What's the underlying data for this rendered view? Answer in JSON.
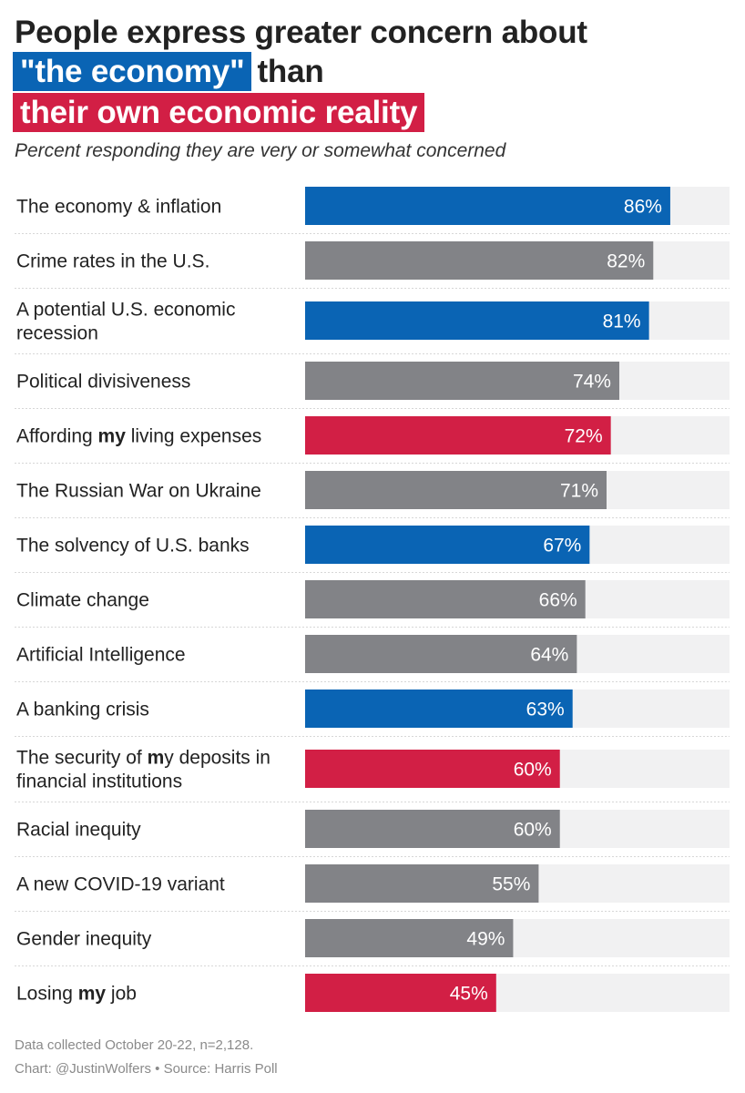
{
  "title": {
    "line1": "People express greater concern about",
    "line2_highlight": "\"the economy\"",
    "line2_rest": "than",
    "line3_highlight": "their own economic reality"
  },
  "subtitle": "Percent responding they are very or somewhat concerned",
  "colors": {
    "blue": "#0a64b4",
    "gray": "#828387",
    "red": "#d21f45",
    "track": "#f1f1f2",
    "divider": "#d7d7d7"
  },
  "chart_data": {
    "type": "bar",
    "orientation": "horizontal",
    "xlim": [
      0,
      100
    ],
    "value_suffix": "%",
    "categories": [
      "The economy & inflation",
      "Crime rates in the U.S.",
      "A potential U.S. economic recession",
      "Political divisiveness",
      "Affording my living expenses",
      "The Russian War on Ukraine",
      "The solvency of U.S. banks",
      "Climate change",
      "Artificial Intelligence",
      "A banking crisis",
      "The security of my deposits in financial institutions",
      "Racial inequity",
      "A new COVID-19 variant",
      "Gender inequity",
      "Losing my job"
    ],
    "rows": [
      {
        "label": "The economy & inflation",
        "lines": [
          [
            {
              "t": "The economy & inflation"
            }
          ]
        ],
        "value": 86,
        "group": "blue"
      },
      {
        "label": "Crime rates in the U.S.",
        "lines": [
          [
            {
              "t": "Crime rates in the U.S."
            }
          ]
        ],
        "value": 82,
        "group": "gray"
      },
      {
        "label": "A potential U.S. economic recession",
        "lines": [
          [
            {
              "t": "A potential U.S. economic"
            }
          ],
          [
            {
              "t": "recession"
            }
          ]
        ],
        "value": 81,
        "group": "blue"
      },
      {
        "label": "Political divisiveness",
        "lines": [
          [
            {
              "t": "Political divisiveness"
            }
          ]
        ],
        "value": 74,
        "group": "gray"
      },
      {
        "label": "Affording my living expenses",
        "lines": [
          [
            {
              "t": "Affording "
            },
            {
              "t": "my",
              "b": true
            },
            {
              "t": " living expenses"
            }
          ]
        ],
        "value": 72,
        "group": "red"
      },
      {
        "label": "The Russian War on Ukraine",
        "lines": [
          [
            {
              "t": "The Russian War on Ukraine"
            }
          ]
        ],
        "value": 71,
        "group": "gray"
      },
      {
        "label": "The solvency of U.S. banks",
        "lines": [
          [
            {
              "t": "The solvency of U.S. banks"
            }
          ]
        ],
        "value": 67,
        "group": "blue"
      },
      {
        "label": "Climate change",
        "lines": [
          [
            {
              "t": "Climate change"
            }
          ]
        ],
        "value": 66,
        "group": "gray"
      },
      {
        "label": "Artificial Intelligence",
        "lines": [
          [
            {
              "t": "Artificial Intelligence"
            }
          ]
        ],
        "value": 64,
        "group": "gray"
      },
      {
        "label": "A banking crisis",
        "lines": [
          [
            {
              "t": "A banking crisis"
            }
          ]
        ],
        "value": 63,
        "group": "blue"
      },
      {
        "label": "The security of my deposits in financial institutions",
        "lines": [
          [
            {
              "t": "The security of "
            },
            {
              "t": "m",
              "b": true
            },
            {
              "t": "y deposits in"
            }
          ],
          [
            {
              "t": "financial institutions"
            }
          ]
        ],
        "value": 60,
        "group": "red"
      },
      {
        "label": "Racial inequity",
        "lines": [
          [
            {
              "t": "Racial inequity"
            }
          ]
        ],
        "value": 60,
        "group": "gray"
      },
      {
        "label": "A new COVID-19 variant",
        "lines": [
          [
            {
              "t": "A new COVID-19 variant"
            }
          ]
        ],
        "value": 55,
        "group": "gray"
      },
      {
        "label": "Gender inequity",
        "lines": [
          [
            {
              "t": "Gender inequity"
            }
          ]
        ],
        "value": 49,
        "group": "gray"
      },
      {
        "label": "Losing my job",
        "lines": [
          [
            {
              "t": "Losing "
            },
            {
              "t": "my",
              "b": true
            },
            {
              "t": " job"
            }
          ]
        ],
        "value": 45,
        "group": "red"
      }
    ]
  },
  "footer": {
    "note": "Data collected October 20-22, n=2,128.",
    "credit": "Chart: @JustinWolfers • Source: Harris Poll"
  }
}
